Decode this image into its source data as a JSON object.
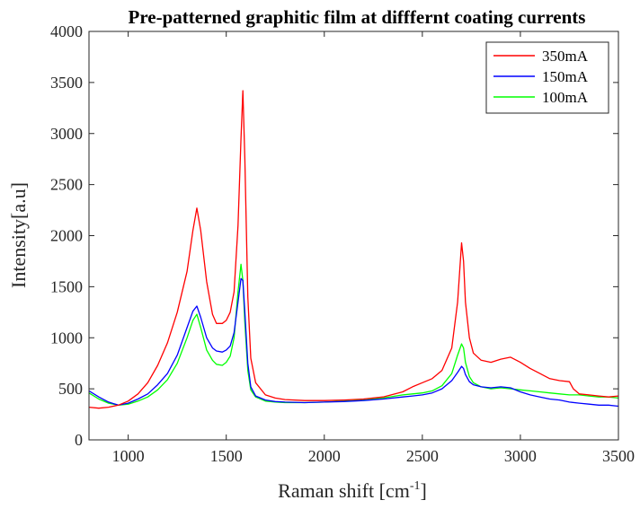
{
  "chart_data": {
    "type": "line",
    "title": "Pre-patterned graphitic film at difffernt coating currents",
    "xlabel": "Raman shift [cm",
    "xlabel_sup": "-1",
    "xlabel_end": "]",
    "ylabel": "Intensity[a.u]",
    "xlim": [
      800,
      3500
    ],
    "ylim": [
      0,
      4000
    ],
    "xticks": [
      1000,
      1500,
      2000,
      2500,
      3000,
      3500
    ],
    "yticks": [
      0,
      500,
      1000,
      1500,
      2000,
      2500,
      3000,
      3500,
      4000
    ],
    "grid": false,
    "legend_position": "top-right",
    "series": [
      {
        "name": "350mA",
        "color": "#ff0000",
        "x": [
          800,
          850,
          900,
          950,
          1000,
          1050,
          1100,
          1150,
          1200,
          1250,
          1300,
          1330,
          1350,
          1370,
          1400,
          1430,
          1450,
          1480,
          1500,
          1520,
          1540,
          1560,
          1575,
          1585,
          1595,
          1610,
          1625,
          1650,
          1700,
          1750,
          1800,
          1900,
          2000,
          2100,
          2200,
          2300,
          2400,
          2450,
          2500,
          2550,
          2600,
          2650,
          2680,
          2700,
          2710,
          2720,
          2740,
          2760,
          2800,
          2850,
          2900,
          2950,
          3000,
          3050,
          3100,
          3150,
          3200,
          3250,
          3270,
          3300,
          3350,
          3400,
          3450,
          3500
        ],
        "y": [
          320,
          310,
          320,
          340,
          380,
          450,
          560,
          730,
          950,
          1250,
          1650,
          2050,
          2270,
          2050,
          1550,
          1230,
          1140,
          1140,
          1170,
          1250,
          1450,
          2100,
          2950,
          3420,
          2750,
          1400,
          800,
          560,
          440,
          410,
          395,
          385,
          385,
          390,
          400,
          420,
          470,
          520,
          560,
          600,
          680,
          900,
          1350,
          1930,
          1750,
          1350,
          1000,
          850,
          780,
          760,
          790,
          810,
          760,
          700,
          650,
          600,
          580,
          570,
          500,
          450,
          440,
          430,
          420,
          430
        ]
      },
      {
        "name": "150mA",
        "color": "#0000ff",
        "x": [
          800,
          850,
          900,
          950,
          1000,
          1050,
          1100,
          1150,
          1200,
          1250,
          1300,
          1330,
          1350,
          1370,
          1400,
          1430,
          1450,
          1480,
          1500,
          1520,
          1540,
          1560,
          1575,
          1585,
          1595,
          1610,
          1625,
          1650,
          1700,
          1750,
          1800,
          1900,
          2000,
          2100,
          2200,
          2300,
          2400,
          2450,
          2500,
          2550,
          2600,
          2650,
          2680,
          2700,
          2710,
          2720,
          2740,
          2760,
          2800,
          2850,
          2900,
          2950,
          3000,
          3050,
          3100,
          3150,
          3200,
          3250,
          3300,
          3350,
          3400,
          3450,
          3500
        ],
        "y": [
          480,
          420,
          370,
          340,
          360,
          400,
          450,
          540,
          650,
          830,
          1100,
          1260,
          1310,
          1200,
          1000,
          900,
          870,
          860,
          880,
          920,
          1050,
          1350,
          1580,
          1560,
          1250,
          750,
          520,
          430,
          390,
          375,
          370,
          365,
          370,
          375,
          385,
          400,
          420,
          430,
          440,
          460,
          500,
          580,
          660,
          720,
          700,
          640,
          570,
          540,
          520,
          510,
          520,
          510,
          470,
          440,
          420,
          400,
          390,
          370,
          360,
          350,
          340,
          340,
          330
        ]
      },
      {
        "name": "100mA",
        "color": "#00ff00",
        "x": [
          800,
          850,
          900,
          950,
          1000,
          1050,
          1100,
          1150,
          1200,
          1250,
          1300,
          1330,
          1350,
          1370,
          1400,
          1430,
          1450,
          1480,
          1500,
          1520,
          1540,
          1560,
          1575,
          1585,
          1595,
          1610,
          1625,
          1650,
          1700,
          1750,
          1800,
          1900,
          2000,
          2100,
          2200,
          2300,
          2400,
          2450,
          2500,
          2550,
          2600,
          2650,
          2680,
          2700,
          2710,
          2720,
          2740,
          2760,
          2800,
          2850,
          2900,
          2950,
          3000,
          3050,
          3100,
          3150,
          3200,
          3250,
          3300,
          3350,
          3400,
          3450,
          3500
        ],
        "y": [
          460,
          400,
          360,
          340,
          350,
          380,
          420,
          490,
          590,
          750,
          1000,
          1170,
          1230,
          1100,
          880,
          780,
          740,
          730,
          760,
          820,
          1000,
          1450,
          1720,
          1560,
          1150,
          680,
          490,
          420,
          380,
          370,
          365,
          365,
          370,
          380,
          390,
          410,
          440,
          450,
          460,
          480,
          530,
          650,
          830,
          940,
          900,
          760,
          620,
          560,
          520,
          500,
          510,
          500,
          490,
          480,
          470,
          460,
          450,
          440,
          440,
          430,
          420,
          420,
          410
        ]
      }
    ]
  }
}
